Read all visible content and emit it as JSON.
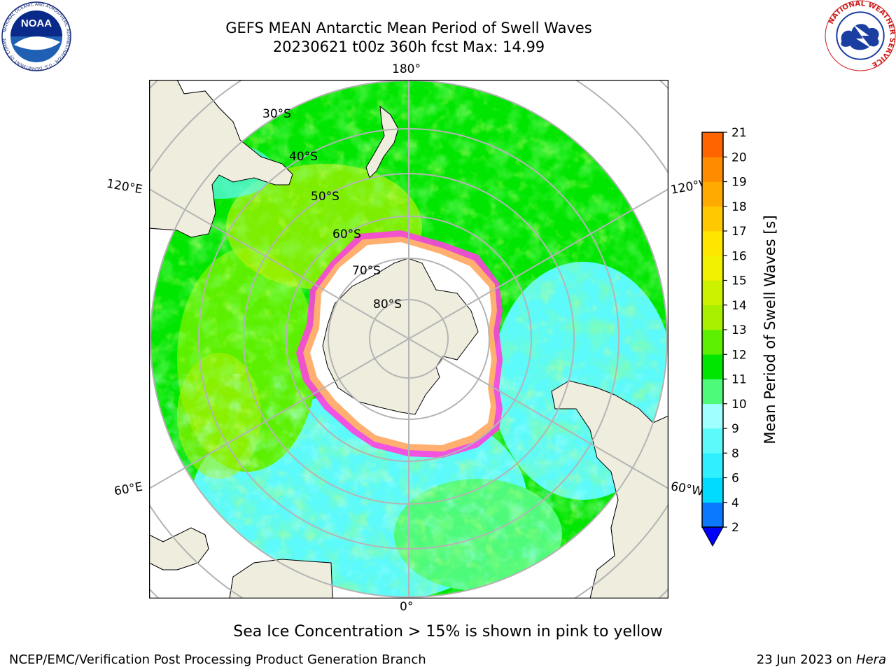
{
  "header": {
    "title_line1": "GEFS MEAN Antarctic Mean Period of Swell Waves",
    "title_line2": "20230621 t00z 360h fcst   Max: 14.99"
  },
  "logos": {
    "noaa": {
      "name": "noaa-logo",
      "text": "NOAA",
      "ring_text": "NATIONAL OCEANIC AND ATMOSPHERIC ADMINISTRATION · U.S. DEPARTMENT OF COMMERCE"
    },
    "nws": {
      "name": "nws-logo",
      "ring_text": "NATIONAL WEATHER SERVICE"
    }
  },
  "map": {
    "projection": "south-polar-stereographic",
    "longitude_labels": {
      "top": "180°",
      "bottom": "0°",
      "upper_left": "120°E",
      "upper_right": "120°W",
      "lower_left": "60°E",
      "lower_right": "60°W"
    },
    "latitude_labels": [
      "30°S",
      "40°S",
      "50°S",
      "60°S",
      "70°S",
      "80°S"
    ],
    "colors": {
      "land": "#efedde",
      "grid": "#b4b4b4",
      "ice_fill": "#ffffff"
    }
  },
  "colorbar": {
    "label": "Mean Period of Swell Waves [s]",
    "ticks": [
      "2",
      "4",
      "6",
      "8",
      "9",
      "10",
      "11",
      "12",
      "13",
      "14",
      "15",
      "16",
      "17",
      "18",
      "19",
      "20",
      "21"
    ],
    "colors": [
      "#0a78ff",
      "#00dcff",
      "#30f0ff",
      "#5cfafa",
      "#a0ffff",
      "#4dfa7a",
      "#00e600",
      "#5cf000",
      "#a8f000",
      "#ccf200",
      "#f0f000",
      "#ffe600",
      "#ffc800",
      "#ffaa00",
      "#ff8c00",
      "#ff6400",
      "#ff3200",
      "#ff0000"
    ],
    "under_color": "#0000ff"
  },
  "caption": "Sea Ice Concentration > 15% is shown in pink to yellow",
  "footer": {
    "left": "NCEP/EMC/Verification Post Processing Product Generation Branch",
    "date": "23 Jun 2023 on ",
    "host": "Hera"
  }
}
